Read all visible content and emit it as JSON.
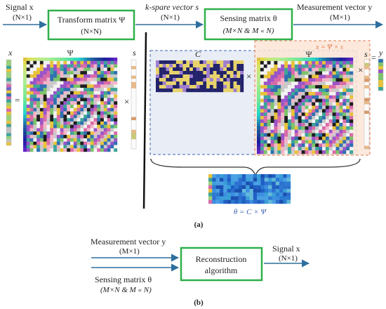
{
  "part_a": {
    "signal_label": "Signal x",
    "signal_dim": "(N×1)",
    "transform_box": {
      "line1": "Transform matrix Ψ",
      "line2": "(N×N)"
    },
    "sparse_label": "k-spare vector s",
    "sparse_dim": "(N×1)",
    "sensing_box": {
      "line1": "Sensing matrix θ",
      "line2": "(M×N & M « N)"
    },
    "measurement_label": "Measurement vector y",
    "measurement_dim": "(M×1)",
    "x_label": "x",
    "psi_label": "Ψ",
    "s_label": "s",
    "c_label": "C",
    "psi2_label": "Ψ",
    "s2_label": "s",
    "y_label": "y",
    "equals": "=",
    "times": "×",
    "x_eq": "x = Ψ × s",
    "theta_eq": "θ = C × Ψ",
    "caption": "(a)"
  },
  "part_b": {
    "measurement_label": "Measurement vector y",
    "measurement_dim": "(M×1)",
    "sensing_label": "Sensing matrix θ",
    "sensing_dim": "(M×N & M « N)",
    "recon_box": {
      "line1": "Reconstruction",
      "line2": "algorithm"
    },
    "signal_label": "Signal x",
    "signal_dim": "(N×1)",
    "caption": "(b)"
  },
  "colors": {
    "box_border": "#2fb04a",
    "arrow": "#2e6f9e",
    "dashed_blue": "#3f63b0",
    "dashed_orange": "#e07a50",
    "highlight_orange": "#fbe5d6",
    "highlight_blue": "#e8edf6"
  }
}
